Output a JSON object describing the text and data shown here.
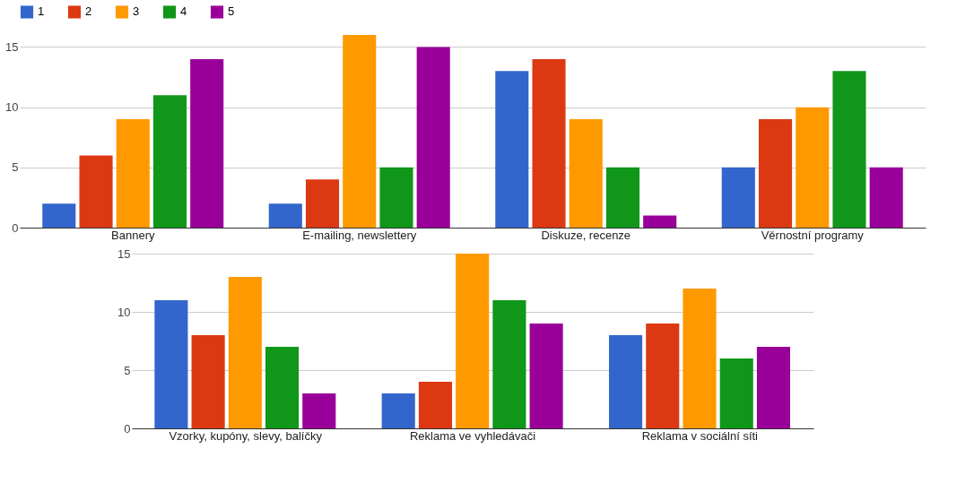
{
  "chart_data": [
    {
      "type": "bar",
      "categories": [
        "Bannery",
        "E-mailing, newslettery",
        "Diskuze, recenze",
        "Věrnostní programy"
      ],
      "series": [
        {
          "name": "1",
          "color": "#3366cc",
          "values": [
            2,
            2,
            13,
            5
          ]
        },
        {
          "name": "2",
          "color": "#dc3912",
          "values": [
            6,
            4,
            14,
            9
          ]
        },
        {
          "name": "3",
          "color": "#ff9900",
          "values": [
            9,
            16,
            9,
            10
          ]
        },
        {
          "name": "4",
          "color": "#109618",
          "values": [
            11,
            5,
            5,
            13
          ]
        },
        {
          "name": "5",
          "color": "#990099",
          "values": [
            14,
            15,
            1,
            5
          ]
        }
      ],
      "ylim": [
        0,
        16
      ],
      "yticks": [
        0,
        5,
        10,
        15
      ],
      "grid": "y",
      "legend": "top left"
    },
    {
      "type": "bar",
      "categories": [
        "Vzorky, kupóny, slevy, balíčky",
        "Reklama ve vyhledávači",
        "Reklama v sociální síti"
      ],
      "series": [
        {
          "name": "1",
          "color": "#3366cc",
          "values": [
            11,
            3,
            8
          ]
        },
        {
          "name": "2",
          "color": "#dc3912",
          "values": [
            8,
            4,
            9
          ]
        },
        {
          "name": "3",
          "color": "#ff9900",
          "values": [
            13,
            15,
            12
          ]
        },
        {
          "name": "4",
          "color": "#109618",
          "values": [
            7,
            11,
            6
          ]
        },
        {
          "name": "5",
          "color": "#990099",
          "values": [
            3,
            9,
            7
          ]
        }
      ],
      "ylim": [
        0,
        15
      ],
      "yticks": [
        0,
        5,
        10,
        15
      ],
      "grid": "y"
    }
  ]
}
